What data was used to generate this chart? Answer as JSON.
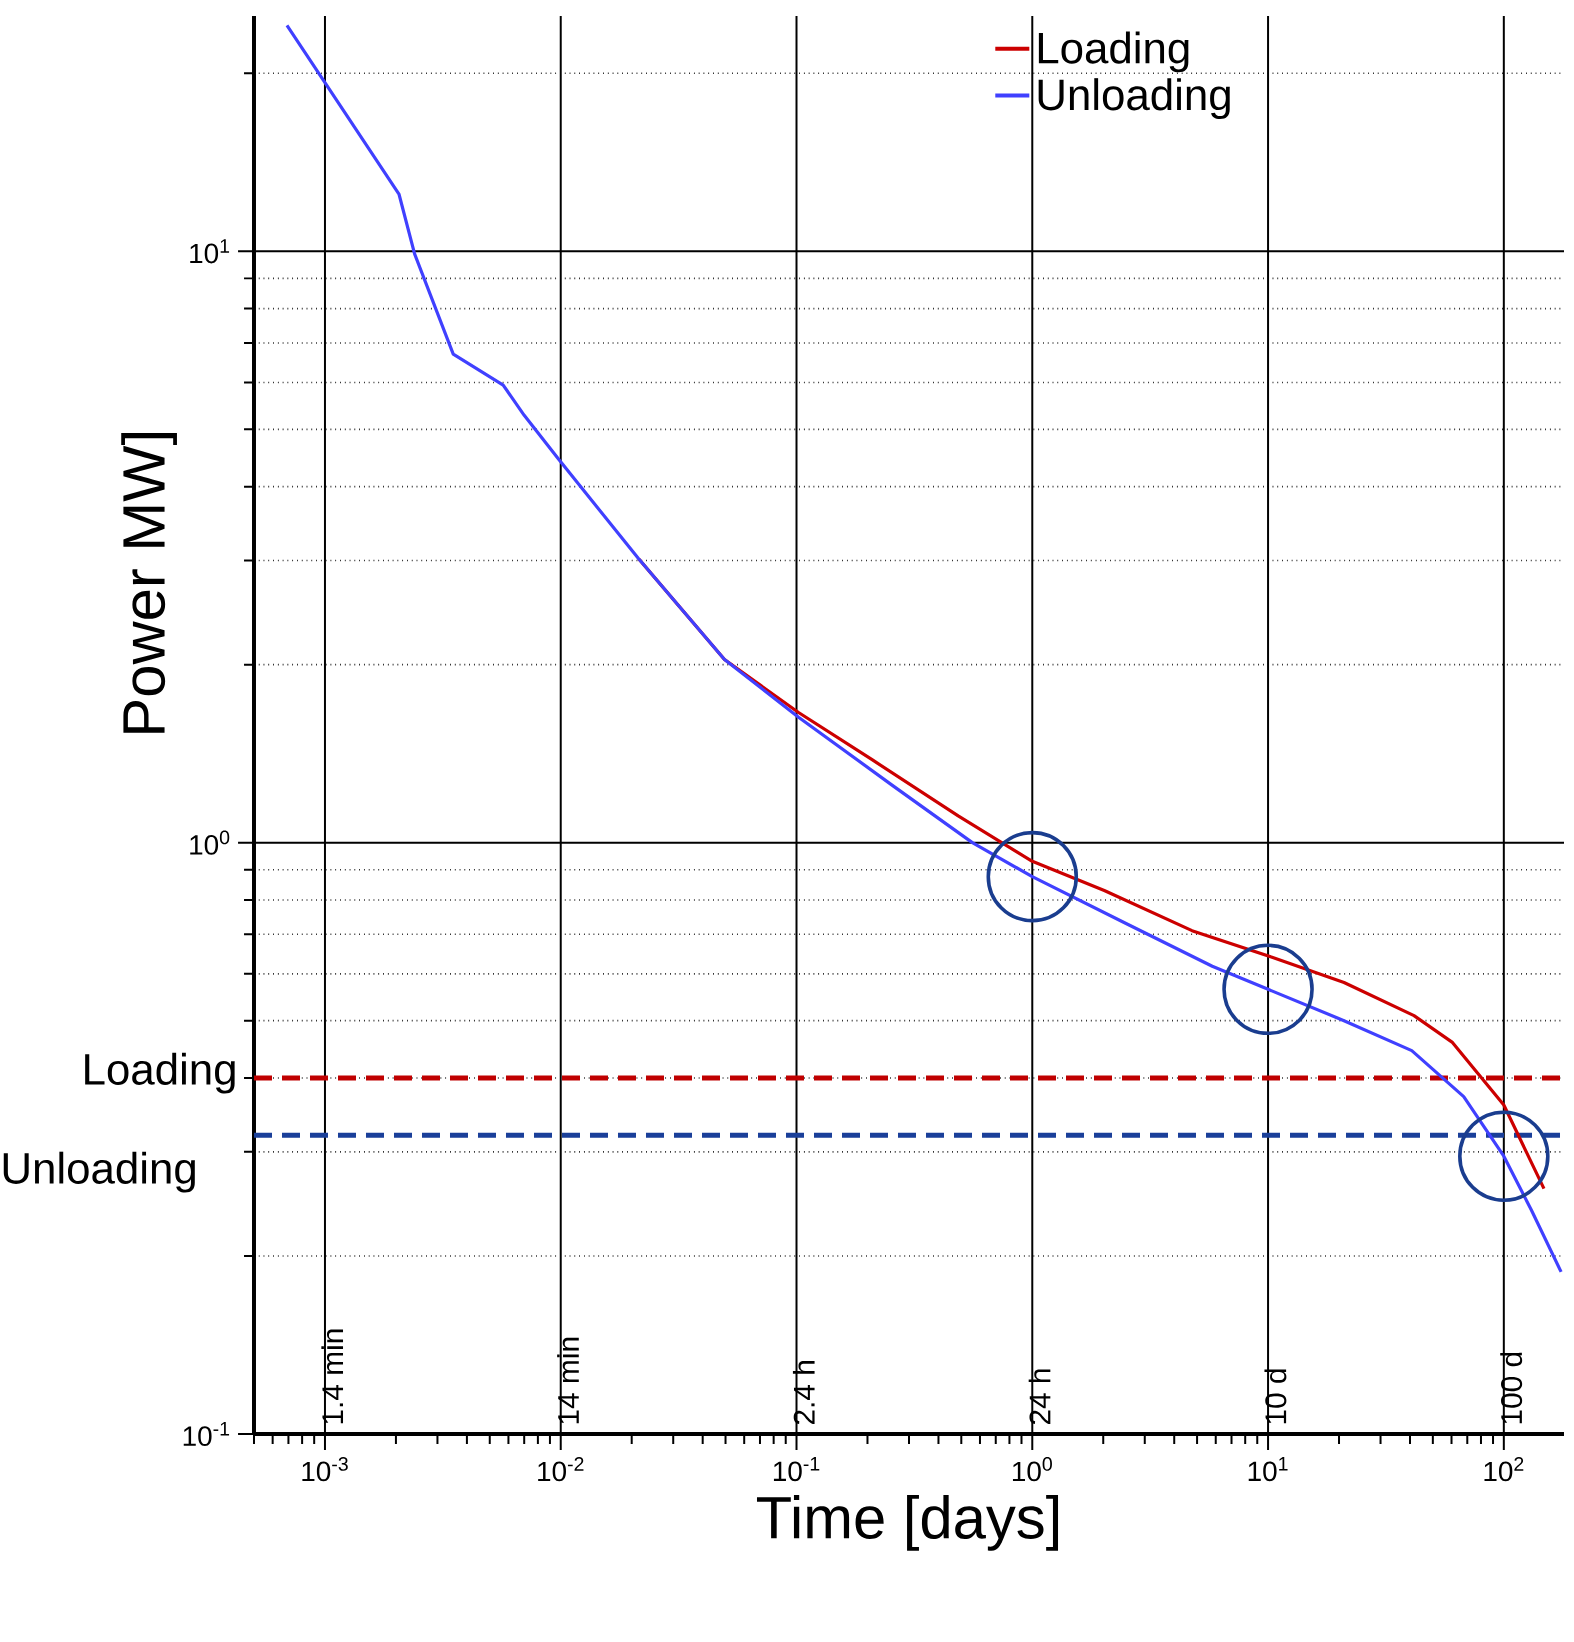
{
  "chart_data": {
    "type": "line",
    "xlabel": "Time [days]",
    "ylabel": "Power MW]",
    "series": [
      {
        "name": "Loading",
        "color": "#cc0000",
        "x": [
          0.0214,
          0.0495,
          0.102,
          0.21,
          0.485,
          1,
          2.02,
          4.76,
          10.4,
          21,
          41.6,
          60.3,
          100,
          148
        ],
        "values": [
          3.02,
          2.04,
          1.66,
          1.38,
          1.11,
          0.93,
          0.83,
          0.71,
          0.64,
          0.58,
          0.51,
          0.46,
          0.36,
          0.26
        ]
      },
      {
        "name": "Unloading",
        "color": "#4040ff",
        "x": [
          0.00069,
          0.00206,
          0.0024,
          0.0035,
          0.0057,
          0.007,
          0.0098,
          0.0214,
          0.0495,
          0.102,
          0.255,
          0.557,
          1,
          2.45,
          5.8,
          10,
          21,
          40.7,
          67.6,
          100,
          131,
          175
        ],
        "values": [
          24.1,
          12.5,
          9.9,
          6.7,
          5.94,
          5.28,
          4.45,
          3.02,
          2.04,
          1.63,
          1.25,
          1.0,
          0.876,
          0.733,
          0.618,
          0.565,
          0.5,
          0.445,
          0.372,
          0.295,
          0.239,
          0.188
        ]
      }
    ],
    "log": "xy",
    "xlim": [
      0.0005,
      180
    ],
    "ylim": [
      0.1,
      25
    ],
    "xticks": [
      {
        "value": 0.001,
        "label": "10$^{-3}$"
      },
      {
        "value": 0.01,
        "label": "10$^{-2}$"
      },
      {
        "value": 0.1,
        "label": "10$^{-1}$"
      },
      {
        "value": 1,
        "label": "10$^{0}$"
      },
      {
        "value": 10,
        "label": "10$^{1}$"
      },
      {
        "value": 100,
        "label": "10$^{2}$"
      }
    ],
    "yticks": [
      {
        "value": 0.1,
        "label": "10$^{-1}$"
      },
      {
        "value": 1,
        "label": "10$^{0}$"
      },
      {
        "value": 10,
        "label": "10$^{1}$"
      }
    ],
    "grid": "y",
    "legend": "top right",
    "marker": "none",
    "line_style": "solid",
    "ref_lines": [
      {
        "axis": "x",
        "value": 0.001,
        "label": "1.4 min",
        "color": "#000000"
      },
      {
        "axis": "x",
        "value": 0.01,
        "label": "14 min",
        "color": "#000000"
      },
      {
        "axis": "x",
        "value": 0.1,
        "label": "2.4 h",
        "color": "#000000"
      },
      {
        "axis": "x",
        "value": 1,
        "label": "24 h",
        "color": "#000000"
      },
      {
        "axis": "x",
        "value": 10,
        "label": "10 d",
        "color": "#000000"
      },
      {
        "axis": "x",
        "value": 100,
        "label": "100 d",
        "color": "#000000"
      },
      {
        "axis": "y",
        "value": 0.4,
        "label": "Loading",
        "color": "#c00000",
        "line_style": "dashed"
      },
      {
        "axis": "y",
        "value": 0.32,
        "label": "Unloading",
        "color": "#1a3f99",
        "line_style": "dashed"
      }
    ]
  }
}
